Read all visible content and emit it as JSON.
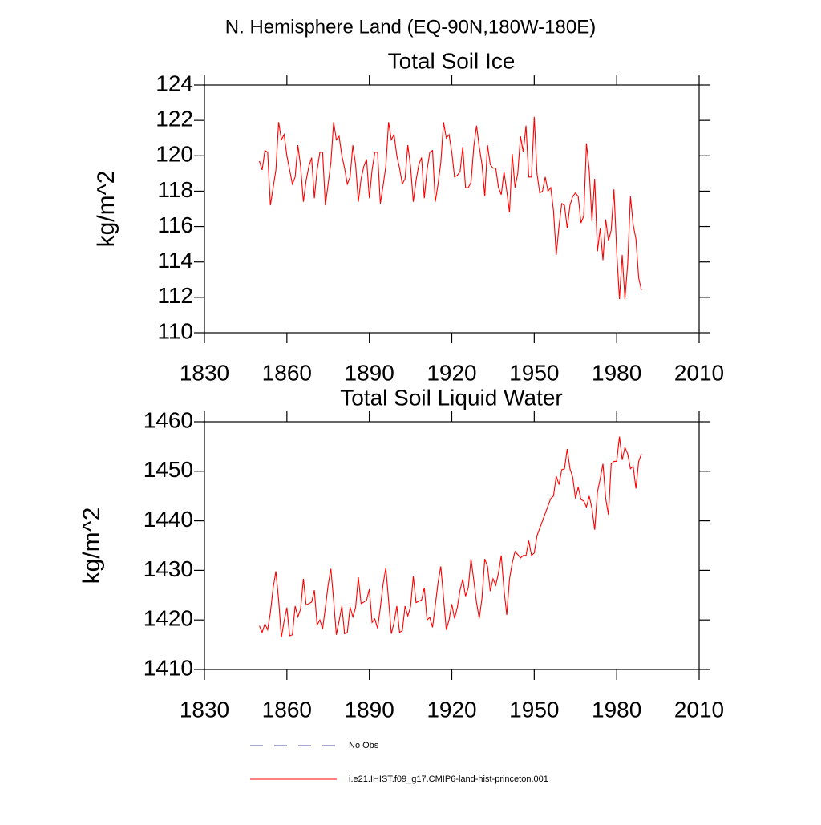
{
  "chart_data": [
    {
      "type": "line",
      "suptitle": "N. Hemisphere Land (EQ-90N,180W-180E)",
      "title": "Total Soil Ice",
      "ylabel": "kg/m^2",
      "xlim": [
        1830,
        2010
      ],
      "xticks": [
        1830,
        1860,
        1890,
        1920,
        1950,
        1980,
        2010
      ],
      "ylim": [
        110,
        124
      ],
      "yticks": [
        110,
        112,
        114,
        116,
        118,
        120,
        122,
        124
      ],
      "x": [
        1850,
        1851,
        1852,
        1853,
        1854,
        1855,
        1856,
        1857,
        1858,
        1859,
        1860,
        1861,
        1862,
        1863,
        1864,
        1865,
        1866,
        1867,
        1868,
        1869,
        1870,
        1871,
        1872,
        1873,
        1874,
        1875,
        1876,
        1877,
        1878,
        1879,
        1880,
        1881,
        1882,
        1883,
        1884,
        1885,
        1886,
        1887,
        1888,
        1889,
        1890,
        1891,
        1892,
        1893,
        1894,
        1895,
        1896,
        1897,
        1898,
        1899,
        1900,
        1901,
        1902,
        1903,
        1904,
        1905,
        1906,
        1907,
        1908,
        1909,
        1910,
        1911,
        1912,
        1913,
        1914,
        1915,
        1916,
        1917,
        1918,
        1919,
        1920,
        1921,
        1922,
        1923,
        1924,
        1925,
        1926,
        1927,
        1928,
        1929,
        1930,
        1931,
        1932,
        1933,
        1934,
        1935,
        1936,
        1937,
        1938,
        1939,
        1940,
        1941,
        1942,
        1943,
        1944,
        1945,
        1946,
        1947,
        1948,
        1949,
        1950,
        1951,
        1952,
        1953,
        1954,
        1955,
        1956,
        1957,
        1958,
        1959,
        1960,
        1961,
        1962,
        1963,
        1964,
        1965,
        1966,
        1967,
        1968,
        1969,
        1970,
        1971,
        1972,
        1973,
        1974,
        1975,
        1976,
        1977,
        1978,
        1979,
        1980,
        1981,
        1982,
        1983,
        1984,
        1985,
        1986,
        1987,
        1988,
        1989
      ],
      "series": [
        {
          "color": "#ff0000",
          "values": [
            119.7,
            119.2,
            120.3,
            120.2,
            117.2,
            118.2,
            119.2,
            121.9,
            120.9,
            121.2,
            120.0,
            119.2,
            118.4,
            118.8,
            120.6,
            119.4,
            117.4,
            118.6,
            119.4,
            119.9,
            117.6,
            119.2,
            120.2,
            120.2,
            117.2,
            118.4,
            119.6,
            121.9,
            120.9,
            121.1,
            120.0,
            119.3,
            118.4,
            118.8,
            120.6,
            119.5,
            117.4,
            118.7,
            119.4,
            119.8,
            117.6,
            119.2,
            120.2,
            120.2,
            117.3,
            118.3,
            119.4,
            121.9,
            120.9,
            121.2,
            120.0,
            119.3,
            118.4,
            118.7,
            120.6,
            119.4,
            117.4,
            118.6,
            119.5,
            119.9,
            117.6,
            119.2,
            120.2,
            120.3,
            117.4,
            118.4,
            119.6,
            121.9,
            121.0,
            121.2,
            120.2,
            118.8,
            118.9,
            119.1,
            120.5,
            118.2,
            118.2,
            118.5,
            120.5,
            121.7,
            120.5,
            119.5,
            117.7,
            120.6,
            119.5,
            119.3,
            119.3,
            118.2,
            117.8,
            119.1,
            118.0,
            116.8,
            120.1,
            118.2,
            119.0,
            121.1,
            120.2,
            121.7,
            118.8,
            118.8,
            122.2,
            119.0,
            117.9,
            118.0,
            118.8,
            118.0,
            118.2,
            116.9,
            114.4,
            116.0,
            117.3,
            117.2,
            115.9,
            117.2,
            117.7,
            117.9,
            117.7,
            116.2,
            116.6,
            120.7,
            119.2,
            116.3,
            118.7,
            114.6,
            115.9,
            114.1,
            116.4,
            115.2,
            115.8,
            118.1,
            114.6,
            111.9,
            114.4,
            111.9,
            113.9,
            117.7,
            116.1,
            115.3,
            113.1,
            112.4
          ]
        }
      ]
    },
    {
      "type": "line",
      "title": "Total Soil Liquid Water",
      "ylabel": "kg/m^2",
      "xlim": [
        1830,
        2010
      ],
      "xticks": [
        1830,
        1860,
        1890,
        1920,
        1950,
        1980,
        2010
      ],
      "ylim": [
        1410,
        1460
      ],
      "yticks": [
        1410,
        1420,
        1430,
        1440,
        1450,
        1460
      ],
      "x": [
        1850,
        1851,
        1852,
        1853,
        1854,
        1855,
        1856,
        1857,
        1858,
        1859,
        1860,
        1861,
        1862,
        1863,
        1864,
        1865,
        1866,
        1867,
        1868,
        1869,
        1870,
        1871,
        1872,
        1873,
        1874,
        1875,
        1876,
        1877,
        1878,
        1879,
        1880,
        1881,
        1882,
        1883,
        1884,
        1885,
        1886,
        1887,
        1888,
        1889,
        1890,
        1891,
        1892,
        1893,
        1894,
        1895,
        1896,
        1897,
        1898,
        1899,
        1900,
        1901,
        1902,
        1903,
        1904,
        1905,
        1906,
        1907,
        1908,
        1909,
        1910,
        1911,
        1912,
        1913,
        1914,
        1915,
        1916,
        1917,
        1918,
        1919,
        1920,
        1921,
        1922,
        1923,
        1924,
        1925,
        1926,
        1927,
        1928,
        1929,
        1930,
        1931,
        1932,
        1933,
        1934,
        1935,
        1936,
        1937,
        1938,
        1939,
        1940,
        1941,
        1942,
        1943,
        1944,
        1945,
        1946,
        1947,
        1948,
        1949,
        1950,
        1951,
        1952,
        1953,
        1954,
        1955,
        1956,
        1957,
        1958,
        1959,
        1960,
        1961,
        1962,
        1963,
        1964,
        1965,
        1966,
        1967,
        1968,
        1969,
        1970,
        1971,
        1972,
        1973,
        1974,
        1975,
        1976,
        1977,
        1978,
        1979,
        1980,
        1981,
        1982,
        1983,
        1984,
        1985,
        1986,
        1987,
        1988,
        1989
      ],
      "series": [
        {
          "color": "#ff0000",
          "values": [
            1418.8,
            1417.5,
            1419.2,
            1418.0,
            1421.5,
            1426.5,
            1429.8,
            1424.0,
            1416.5,
            1419.8,
            1422.5,
            1416.8,
            1417.0,
            1422.8,
            1420.6,
            1422.2,
            1428.3,
            1423.0,
            1423.3,
            1423.6,
            1426.0,
            1419.0,
            1420.0,
            1418.2,
            1422.5,
            1427.0,
            1430.3,
            1424.0,
            1417.0,
            1419.8,
            1422.8,
            1417.2,
            1417.5,
            1422.6,
            1420.6,
            1422.5,
            1428.6,
            1423.3,
            1423.6,
            1424.0,
            1426.2,
            1419.5,
            1420.2,
            1418.3,
            1422.5,
            1427.2,
            1430.5,
            1424.0,
            1417.2,
            1419.5,
            1422.8,
            1417.5,
            1417.8,
            1422.8,
            1420.8,
            1422.7,
            1428.8,
            1423.5,
            1423.8,
            1424.0,
            1426.5,
            1420.0,
            1420.5,
            1418.5,
            1423.0,
            1427.5,
            1430.8,
            1424.5,
            1418.0,
            1420.0,
            1423.2,
            1420.3,
            1422.5,
            1426.0,
            1428.2,
            1424.8,
            1426.5,
            1432.3,
            1428.0,
            1423.5,
            1420.3,
            1424.5,
            1432.3,
            1430.8,
            1425.8,
            1428.3,
            1427.0,
            1429.5,
            1433.0,
            1426.0,
            1421.0,
            1428.3,
            1431.5,
            1433.8,
            1433.2,
            1432.5,
            1433.0,
            1433.0,
            1436.0,
            1433.0,
            1433.5,
            1437.0,
            1438.5,
            1440.0,
            1441.5,
            1443.0,
            1444.5,
            1445.0,
            1449.0,
            1447.3,
            1450.3,
            1450.5,
            1454.5,
            1450.5,
            1448.8,
            1444.5,
            1446.8,
            1444.3,
            1444.0,
            1442.8,
            1445.0,
            1442.5,
            1438.2,
            1445.8,
            1448.5,
            1451.5,
            1444.5,
            1441.2,
            1451.5,
            1452.0,
            1452.0,
            1457.0,
            1452.3,
            1454.8,
            1453.5,
            1450.5,
            1451.0,
            1446.5,
            1452.0,
            1453.5
          ]
        }
      ]
    }
  ],
  "legend": [
    {
      "name": "No Obs",
      "color": "#4f4f9f",
      "dash": true
    },
    {
      "name": "i.e21.IHIST.f09_g17.CMIP6-land-hist-princeton.001",
      "color": "#ff0000",
      "dash": false
    }
  ]
}
